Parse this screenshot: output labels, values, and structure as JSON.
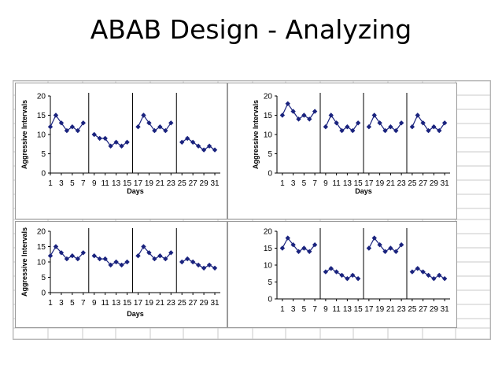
{
  "slide": {
    "title": "ABAB Design - Analyzing"
  },
  "colors": {
    "series": "#1a237e",
    "axis": "#000000",
    "grid": "#c8c8c8",
    "border": "#9a9a9a"
  },
  "chart_data": [
    {
      "type": "line",
      "position": "top-left",
      "xlabel": "Days",
      "ylabel": "Aggressive Intervals",
      "ylim": [
        0,
        20
      ],
      "yticks": [
        0,
        5,
        10,
        15,
        20
      ],
      "xlim": [
        1,
        32
      ],
      "xticks": [
        1,
        3,
        5,
        7,
        9,
        11,
        13,
        15,
        17,
        19,
        21,
        23,
        25,
        27,
        29,
        31
      ],
      "phase_lines": [
        8,
        16,
        24
      ],
      "segments": [
        {
          "x": [
            1,
            2,
            3,
            4,
            5,
            6,
            7
          ],
          "y": [
            12,
            15,
            13,
            11,
            12,
            11,
            13
          ]
        },
        {
          "x": [
            9,
            10,
            11,
            12,
            13,
            14,
            15
          ],
          "y": [
            10,
            9,
            9,
            7,
            8,
            7,
            8
          ]
        },
        {
          "x": [
            17,
            18,
            19,
            20,
            21,
            22,
            23
          ],
          "y": [
            12,
            15,
            13,
            11,
            12,
            11,
            13
          ]
        },
        {
          "x": [
            25,
            26,
            27,
            28,
            29,
            30,
            31
          ],
          "y": [
            8,
            9,
            8,
            7,
            6,
            7,
            6
          ]
        }
      ]
    },
    {
      "type": "line",
      "position": "top-right",
      "xlabel": "Days",
      "ylabel": "Aggressive Intervals",
      "ylim": [
        0,
        20
      ],
      "yticks": [
        0,
        5,
        10,
        15,
        20
      ],
      "xlim": [
        0,
        32
      ],
      "xticks": [
        1,
        3,
        5,
        7,
        9,
        11,
        13,
        15,
        17,
        19,
        21,
        23,
        25,
        27,
        29,
        31
      ],
      "phase_lines": [
        8,
        16,
        24
      ],
      "segments": [
        {
          "x": [
            1,
            2,
            3,
            4,
            5,
            6,
            7
          ],
          "y": [
            15,
            18,
            16,
            14,
            15,
            14,
            16
          ]
        },
        {
          "x": [
            9,
            10,
            11,
            12,
            13,
            14,
            15
          ],
          "y": [
            12,
            15,
            13,
            11,
            12,
            11,
            13
          ]
        },
        {
          "x": [
            17,
            18,
            19,
            20,
            21,
            22,
            23
          ],
          "y": [
            12,
            15,
            13,
            11,
            12,
            11,
            13
          ]
        },
        {
          "x": [
            25,
            26,
            27,
            28,
            29,
            30,
            31
          ],
          "y": [
            12,
            15,
            13,
            11,
            12,
            11,
            13
          ]
        }
      ]
    },
    {
      "type": "line",
      "position": "bottom-left",
      "xlabel": "Days",
      "ylabel": "Aggressive Intervals",
      "ylim": [
        0,
        20
      ],
      "yticks": [
        0,
        5,
        10,
        15,
        20
      ],
      "xlim": [
        1,
        32
      ],
      "xticks": [
        1,
        3,
        5,
        7,
        9,
        11,
        13,
        15,
        17,
        19,
        21,
        23,
        25,
        27,
        29,
        31
      ],
      "phase_lines": [
        8,
        16,
        24
      ],
      "segments": [
        {
          "x": [
            1,
            2,
            3,
            4,
            5,
            6,
            7
          ],
          "y": [
            12,
            15,
            13,
            11,
            12,
            11,
            13
          ]
        },
        {
          "x": [
            9,
            10,
            11,
            12,
            13,
            14,
            15
          ],
          "y": [
            12,
            11,
            11,
            9,
            10,
            9,
            10
          ]
        },
        {
          "x": [
            17,
            18,
            19,
            20,
            21,
            22,
            23
          ],
          "y": [
            12,
            15,
            13,
            11,
            12,
            11,
            13
          ]
        },
        {
          "x": [
            25,
            26,
            27,
            28,
            29,
            30,
            31
          ],
          "y": [
            10,
            11,
            10,
            9,
            8,
            9,
            8
          ]
        }
      ]
    },
    {
      "type": "line",
      "position": "bottom-right",
      "xlabel": "",
      "ylabel": "",
      "ylim": [
        0,
        20
      ],
      "yticks": [
        0,
        5,
        10,
        15,
        20
      ],
      "xlim": [
        0,
        32
      ],
      "xticks": [
        1,
        3,
        5,
        7,
        9,
        11,
        13,
        15,
        17,
        19,
        21,
        23,
        25,
        27,
        29,
        31
      ],
      "phase_lines": [
        8,
        16,
        24
      ],
      "segments": [
        {
          "x": [
            1,
            2,
            3,
            4,
            5,
            6,
            7
          ],
          "y": [
            15,
            18,
            16,
            14,
            15,
            14,
            16
          ]
        },
        {
          "x": [
            9,
            10,
            11,
            12,
            13,
            14,
            15
          ],
          "y": [
            8,
            9,
            8,
            7,
            6,
            7,
            6
          ]
        },
        {
          "x": [
            17,
            18,
            19,
            20,
            21,
            22,
            23
          ],
          "y": [
            15,
            18,
            16,
            14,
            15,
            14,
            16
          ]
        },
        {
          "x": [
            25,
            26,
            27,
            28,
            29,
            30,
            31
          ],
          "y": [
            8,
            9,
            8,
            7,
            6,
            7,
            6
          ]
        }
      ]
    }
  ]
}
